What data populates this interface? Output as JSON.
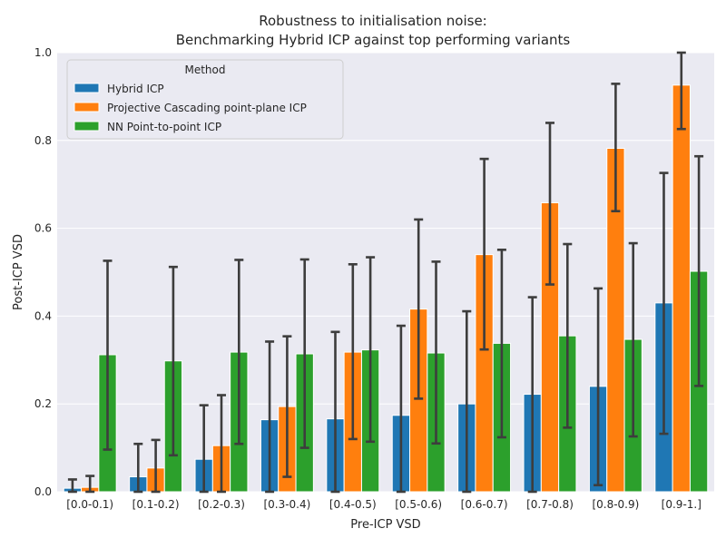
{
  "chart_data": {
    "type": "bar",
    "title_line1": "Robustness to initialisation noise:",
    "title_line2": "Benchmarking Hybrid ICP against top performing variants",
    "xlabel": "Pre-ICP VSD",
    "ylabel": "Post-ICP VSD",
    "ylim": [
      0,
      1.0
    ],
    "yticks": [
      "0.0",
      "0.2",
      "0.4",
      "0.6",
      "0.8",
      "1.0"
    ],
    "grid": true,
    "legend_title": "Method",
    "legend_position": "top-left",
    "categories": [
      "[0.0-0.1)",
      "[0.1-0.2)",
      "[0.2-0.3)",
      "[0.3-0.4)",
      "[0.4-0.5)",
      "[0.5-0.6)",
      "[0.6-0.7)",
      "[0.7-0.8)",
      "[0.8-0.9)",
      "[0.9-1.]"
    ],
    "series": [
      {
        "name": "Hybrid ICP",
        "color": "#1f77b4",
        "values": [
          0.008,
          0.034,
          0.074,
          0.164,
          0.166,
          0.174,
          0.2,
          0.222,
          0.24,
          0.43
        ],
        "err_low": [
          0.0,
          0.0,
          0.0,
          0.0,
          0.0,
          0.0,
          0.0,
          0.0,
          0.015,
          0.132
        ],
        "err_high": [
          0.028,
          0.109,
          0.197,
          0.342,
          0.364,
          0.378,
          0.411,
          0.443,
          0.463,
          0.726
        ]
      },
      {
        "name": "Projective Cascading point-plane ICP",
        "color": "#ff7f0e",
        "values": [
          0.01,
          0.054,
          0.105,
          0.194,
          0.318,
          0.416,
          0.54,
          0.658,
          0.782,
          0.926
        ],
        "err_low": [
          0.0,
          0.0,
          0.0,
          0.034,
          0.12,
          0.212,
          0.324,
          0.472,
          0.639,
          0.826
        ],
        "err_high": [
          0.036,
          0.118,
          0.22,
          0.354,
          0.518,
          0.62,
          0.758,
          0.84,
          0.929,
          1.0
        ]
      },
      {
        "name": "NN Point-to-point ICP",
        "color": "#2ca02c",
        "values": [
          0.312,
          0.298,
          0.318,
          0.314,
          0.323,
          0.316,
          0.338,
          0.355,
          0.347,
          0.502
        ],
        "err_low": [
          0.096,
          0.083,
          0.109,
          0.1,
          0.114,
          0.11,
          0.124,
          0.146,
          0.126,
          0.241
        ],
        "err_high": [
          0.526,
          0.512,
          0.528,
          0.529,
          0.534,
          0.524,
          0.551,
          0.564,
          0.566,
          0.764
        ]
      }
    ]
  }
}
